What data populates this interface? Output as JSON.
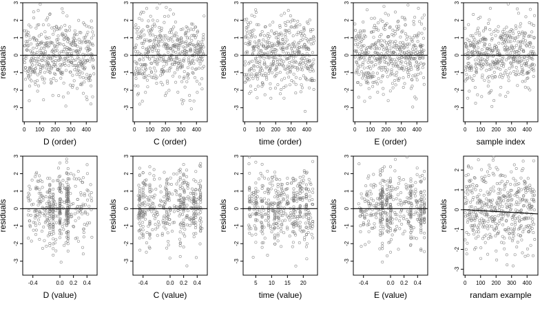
{
  "chart_data": [
    {
      "type": "scatter",
      "xlabel": "D (order)",
      "ylabel": "residuals",
      "xticks": [
        0,
        100,
        200,
        300,
        400
      ],
      "xlim": [
        -10,
        470
      ],
      "yticks": [
        -3,
        -2,
        -1,
        0,
        1,
        2,
        3
      ],
      "ylim": [
        -3.8,
        3.0
      ],
      "reference_line": {
        "y": 0
      },
      "points": {
        "kind": "index",
        "n": 450,
        "seed": 11
      }
    },
    {
      "type": "scatter",
      "xlabel": "C (order)",
      "ylabel": "residuals",
      "xticks": [
        0,
        100,
        200,
        300,
        400
      ],
      "xlim": [
        -10,
        470
      ],
      "yticks": [
        -3,
        -2,
        -1,
        0,
        1,
        2,
        3
      ],
      "ylim": [
        -3.8,
        3.0
      ],
      "reference_line": {
        "y": 0
      },
      "points": {
        "kind": "index",
        "n": 450,
        "seed": 23
      }
    },
    {
      "type": "scatter",
      "xlabel": "time (order)",
      "ylabel": "residuals",
      "xticks": [
        0,
        100,
        200,
        300,
        400
      ],
      "xlim": [
        -10,
        470
      ],
      "yticks": [
        -3,
        -2,
        -1,
        0,
        1,
        2,
        3
      ],
      "ylim": [
        -3.8,
        3.0
      ],
      "reference_line": {
        "y": 0
      },
      "points": {
        "kind": "index",
        "n": 450,
        "seed": 37
      }
    },
    {
      "type": "scatter",
      "xlabel": "E (order)",
      "ylabel": "residuals",
      "xticks": [
        0,
        100,
        200,
        300,
        400
      ],
      "xlim": [
        -10,
        470
      ],
      "yticks": [
        -3,
        -2,
        -1,
        0,
        1,
        2,
        3
      ],
      "ylim": [
        -3.8,
        3.0
      ],
      "reference_line": {
        "y": 0
      },
      "points": {
        "kind": "index",
        "n": 450,
        "seed": 41
      }
    },
    {
      "type": "scatter",
      "xlabel": "sample index",
      "ylabel": "residuals",
      "xticks": [
        0,
        100,
        200,
        300,
        400
      ],
      "xlim": [
        -10,
        470
      ],
      "yticks": [
        -3,
        -2,
        -1,
        0,
        1,
        2,
        3
      ],
      "ylim": [
        -3.8,
        3.0
      ],
      "reference_line": {
        "y": 0
      },
      "points": {
        "kind": "index",
        "n": 450,
        "seed": 53
      }
    },
    {
      "type": "scatter",
      "xlabel": "D (value)",
      "ylabel": "residuals",
      "xticks": [
        -0.4,
        0.0,
        0.2,
        0.4
      ],
      "xtick_labels": [
        "-0.4",
        "0.0",
        "0.2",
        "0.4"
      ],
      "xlim": [
        -0.55,
        0.55
      ],
      "yticks": [
        -3,
        -2,
        -1,
        0,
        1,
        2,
        3
      ],
      "ylim": [
        -3.8,
        3.0
      ],
      "reference_line": {
        "y": 0
      },
      "points": {
        "kind": "value",
        "n": 450,
        "seed": 61,
        "stacked_x": [
          -0.15,
          -0.1,
          0.0,
          0.1,
          0.12
        ]
      }
    },
    {
      "type": "scatter",
      "xlabel": "C (value)",
      "ylabel": "residuals",
      "xticks": [
        -0.4,
        0.0,
        0.2,
        0.4
      ],
      "xtick_labels": [
        "-0.4",
        "0.0",
        "0.2",
        "0.4"
      ],
      "xlim": [
        -0.55,
        0.55
      ],
      "yticks": [
        -3,
        -2,
        -1,
        0,
        1,
        2,
        3
      ],
      "ylim": [
        -3.8,
        3.0
      ],
      "reference_line": {
        "y": 0
      },
      "points": {
        "kind": "value",
        "n": 450,
        "seed": 71,
        "stacked_x": [
          -0.45,
          -0.4,
          -0.3,
          -0.05,
          0.15,
          0.2,
          0.35,
          0.38,
          0.45
        ]
      }
    },
    {
      "type": "scatter",
      "xlabel": "time (value)",
      "ylabel": "residuals",
      "xticks": [
        5,
        10,
        15,
        20
      ],
      "xtick_labels": [
        "5",
        "10",
        "15",
        "20"
      ],
      "xlim": [
        1,
        24.5
      ],
      "yticks": [
        -3,
        -2,
        -1,
        0,
        1,
        2,
        3
      ],
      "ylim": [
        -3.8,
        3.0
      ],
      "reference_line": {
        "y": 0
      },
      "points": {
        "kind": "value",
        "n": 450,
        "seed": 83,
        "stacked_x": [
          3,
          5,
          7,
          9,
          11,
          12,
          13,
          15,
          17,
          19,
          21,
          23
        ]
      }
    },
    {
      "type": "scatter",
      "xlabel": "E (value)",
      "ylabel": "residuals",
      "xticks": [
        -0.4,
        0.0,
        0.2,
        0.4
      ],
      "xtick_labels": [
        "-0.4",
        "0.0",
        "0.2",
        "0.4"
      ],
      "xlim": [
        -0.55,
        0.55
      ],
      "yticks": [
        -3,
        -2,
        -1,
        0,
        1,
        2,
        3
      ],
      "ylim": [
        -3.8,
        3.0
      ],
      "reference_line": {
        "y": 0
      },
      "points": {
        "kind": "value",
        "n": 450,
        "seed": 97,
        "stacked_x": [
          -0.15,
          -0.12,
          -0.05,
          0.0,
          0.3,
          0.45,
          0.5
        ]
      }
    },
    {
      "type": "scatter",
      "xlabel": "randam example",
      "ylabel": "residuals",
      "xticks": [
        0,
        100,
        200,
        300,
        400
      ],
      "xlim": [
        -10,
        470
      ],
      "yticks": [
        -3,
        -2,
        -1,
        0,
        1,
        2
      ],
      "ylim": [
        -3.3,
        2.7
      ],
      "reference_line": {
        "y": 0,
        "slope": -0.00045
      },
      "points": {
        "kind": "index",
        "n": 450,
        "seed": 101
      }
    }
  ]
}
